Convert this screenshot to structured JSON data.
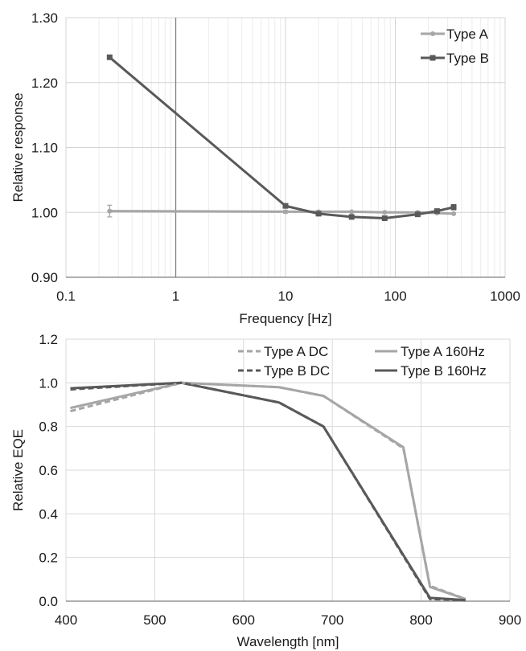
{
  "chart_data": [
    {
      "type": "line",
      "xlabel": "Frequency [Hz]",
      "ylabel": "Relative response",
      "xscale": "log",
      "xlim": [
        0.1,
        1000
      ],
      "ylim": [
        0.9,
        1.3
      ],
      "xticks": [
        "0.1",
        "1",
        "10",
        "100",
        "1000"
      ],
      "yticks": [
        "0.90",
        "1.00",
        "1.10",
        "1.20",
        "1.30"
      ],
      "grid": true,
      "legend_position": "top-right",
      "series": [
        {
          "name": "Type A",
          "color": "#a6a6a6",
          "marker": "circle",
          "x": [
            0.25,
            10,
            20,
            40,
            80,
            160,
            240,
            340
          ],
          "y": [
            1.002,
            1.001,
            1.001,
            1.001,
            1.0,
            1.0,
            0.999,
            0.998
          ],
          "err": [
            0.009,
            0.002,
            0.001,
            0.001,
            0.001,
            0.001,
            0.001,
            0.001
          ]
        },
        {
          "name": "Type B",
          "color": "#595959",
          "marker": "square",
          "x": [
            0.25,
            10,
            20,
            40,
            80,
            160,
            240,
            340
          ],
          "y": [
            1.239,
            1.01,
            0.998,
            0.993,
            0.991,
            0.997,
            1.002,
            1.008
          ],
          "err": [
            0.003,
            0.003,
            0.002,
            0.002,
            0.002,
            0.002,
            0.002,
            0.004
          ]
        }
      ]
    },
    {
      "type": "line",
      "xlabel": "Wavelength [nm]",
      "ylabel": "Relative EQE",
      "xlim": [
        400,
        900
      ],
      "ylim": [
        0.0,
        1.2
      ],
      "xticks": [
        "400",
        "500",
        "600",
        "700",
        "800",
        "900"
      ],
      "yticks": [
        "0.0",
        "0.2",
        "0.4",
        "0.6",
        "0.8",
        "1.0",
        "1.2"
      ],
      "grid": true,
      "legend_position": "top-right",
      "series": [
        {
          "name": "Type A DC",
          "color": "#a6a6a6",
          "dash": true,
          "x": [
            405,
            530,
            640,
            690,
            780,
            810,
            850
          ],
          "y": [
            0.87,
            1.0,
            0.98,
            0.94,
            0.7,
            0.07,
            0.01
          ]
        },
        {
          "name": "Type B DC",
          "color": "#595959",
          "dash": true,
          "x": [
            405,
            530,
            640,
            690,
            810,
            850
          ],
          "y": [
            0.97,
            1.0,
            0.91,
            0.8,
            0.01,
            0.005
          ]
        },
        {
          "name": "Type A 160Hz",
          "color": "#a6a6a6",
          "dash": false,
          "x": [
            405,
            530,
            640,
            690,
            780,
            810,
            850
          ],
          "y": [
            0.885,
            1.0,
            0.98,
            0.94,
            0.705,
            0.065,
            0.01
          ]
        },
        {
          "name": "Type B 160Hz",
          "color": "#595959",
          "dash": false,
          "x": [
            405,
            530,
            640,
            690,
            810,
            850
          ],
          "y": [
            0.975,
            1.0,
            0.91,
            0.8,
            0.015,
            0.005
          ]
        }
      ]
    }
  ]
}
